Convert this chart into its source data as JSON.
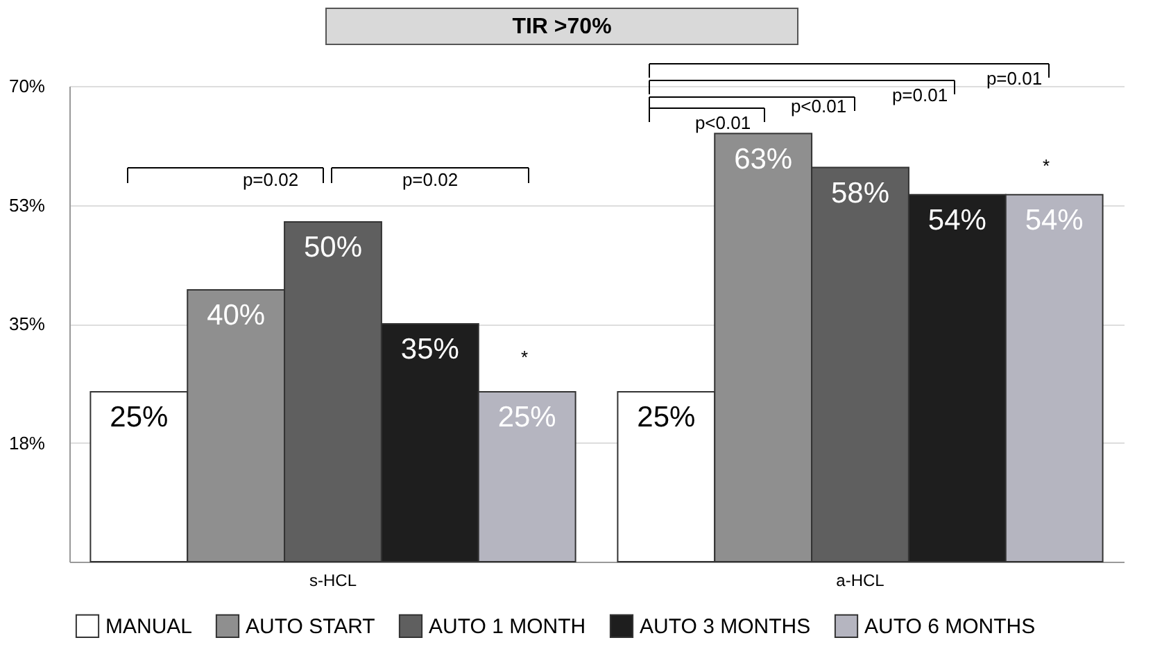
{
  "chart_data": {
    "type": "bar",
    "title": "TIR >70%",
    "categories": [
      "s-HCL",
      "a-HCL"
    ],
    "series": [
      {
        "name": "MANUAL",
        "color": "#ffffff",
        "values": [
          25,
          25
        ],
        "value_labels": [
          "25%",
          "25%"
        ]
      },
      {
        "name": "AUTO START",
        "color": "#8f8f8f",
        "values": [
          40,
          63
        ],
        "value_labels": [
          "40%",
          "63%"
        ]
      },
      {
        "name": "AUTO 1 MONTH",
        "color": "#5f5f5f",
        "values": [
          50,
          58
        ],
        "value_labels": [
          "50%",
          "58%"
        ]
      },
      {
        "name": "AUTO 3 MONTHS",
        "color": "#1e1e1e",
        "values": [
          35,
          54
        ],
        "value_labels": [
          "35%",
          "54%"
        ]
      },
      {
        "name": "AUTO 6 MONTHS",
        "color": "#b5b5c0",
        "values": [
          25,
          54
        ],
        "value_labels": [
          "25%",
          "54%"
        ]
      }
    ],
    "ylim": [
      0,
      70
    ],
    "yticks": [
      {
        "value": 17.5,
        "label": "18%"
      },
      {
        "value": 35,
        "label": "35%"
      },
      {
        "value": 52.5,
        "label": "53%"
      },
      {
        "value": 70,
        "label": "70%"
      }
    ],
    "grid": "y",
    "legend": "bottom",
    "annotations": [
      "p=0.02",
      "p=0.02",
      "p<0.01",
      "p<0.01",
      "p=0.01",
      "p=0.01",
      "*",
      "*"
    ]
  }
}
